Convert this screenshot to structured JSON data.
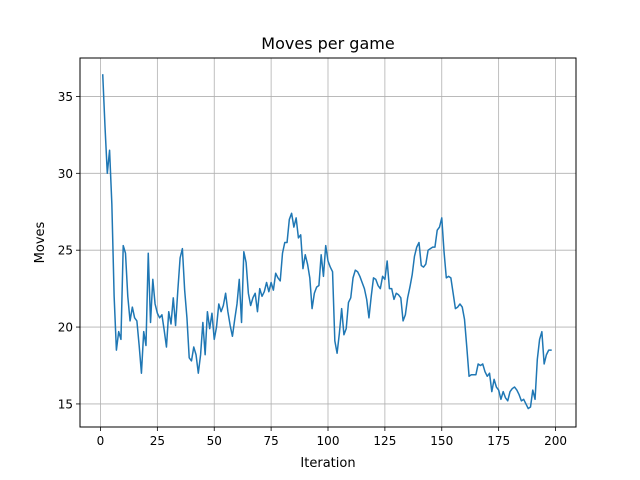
{
  "chart_data": {
    "type": "line",
    "title": "Moves per game",
    "xlabel": "Iteration",
    "ylabel": "Moves",
    "xlim": [
      -9,
      209
    ],
    "ylim": [
      13.5,
      37.5
    ],
    "xticks": [
      0,
      25,
      50,
      75,
      100,
      125,
      150,
      175,
      200
    ],
    "yticks": [
      15,
      20,
      25,
      30,
      35
    ],
    "grid": true,
    "line_color": "#1f77b4",
    "series": [
      {
        "x_start": 1,
        "x_step": 1,
        "values": [
          36.4,
          33.0,
          30.0,
          31.5,
          28.0,
          22.0,
          18.5,
          19.7,
          19.2,
          25.3,
          24.8,
          22.0,
          20.4,
          21.3,
          20.6,
          20.4,
          18.8,
          17.0,
          19.7,
          18.8,
          24.8,
          20.3,
          23.1,
          21.5,
          20.9,
          20.6,
          20.8,
          19.8,
          18.7,
          21.0,
          20.2,
          21.9,
          20.1,
          22.4,
          24.5,
          25.1,
          22.4,
          20.6,
          18.0,
          17.8,
          18.7,
          18.2,
          17.0,
          18.2,
          20.3,
          18.2,
          21.0,
          19.9,
          20.9,
          19.2,
          20.0,
          21.5,
          21.0,
          21.4,
          22.2,
          21.0,
          20.1,
          19.4,
          20.5,
          21.5,
          23.1,
          20.3,
          24.9,
          24.2,
          22.2,
          21.4,
          21.9,
          22.2,
          21.0,
          22.5,
          22.0,
          22.3,
          22.9,
          22.3,
          22.9,
          22.4,
          23.5,
          23.2,
          23.0,
          24.8,
          25.5,
          25.5,
          27.0,
          27.4,
          26.5,
          27.1,
          25.8,
          26.0,
          23.8,
          24.7,
          24.1,
          23.2,
          21.2,
          22.2,
          22.6,
          22.7,
          24.7,
          23.3,
          25.3,
          24.3,
          23.9,
          23.6,
          19.1,
          18.3,
          19.6,
          21.2,
          19.5,
          19.9,
          21.6,
          21.9,
          23.2,
          23.7,
          23.6,
          23.3,
          22.9,
          22.5,
          21.8,
          20.6,
          22.0,
          23.2,
          23.1,
          22.7,
          22.5,
          23.3,
          23.1,
          24.3,
          22.5,
          22.5,
          21.8,
          22.2,
          22.1,
          21.9,
          20.4,
          20.8,
          21.9,
          22.6,
          23.4,
          24.6,
          25.2,
          25.5,
          24.0,
          23.9,
          24.1,
          25.0,
          25.1,
          25.2,
          25.2,
          26.3,
          26.5,
          27.1,
          24.9,
          23.2,
          23.3,
          23.2,
          22.2,
          21.2,
          21.3,
          21.5,
          21.3,
          20.5,
          18.7,
          16.8,
          16.9,
          16.9,
          16.9,
          17.6,
          17.5,
          17.6,
          17.1,
          16.8,
          17.0,
          15.8,
          16.6,
          16.1,
          15.9,
          15.3,
          15.8,
          15.4,
          15.2,
          15.8,
          16.0,
          16.1,
          15.9,
          15.6,
          15.2,
          15.3,
          15.0,
          14.7,
          14.8,
          15.9,
          15.3,
          17.9,
          19.2,
          19.7,
          17.6,
          18.2,
          18.5,
          18.5
        ]
      }
    ]
  }
}
